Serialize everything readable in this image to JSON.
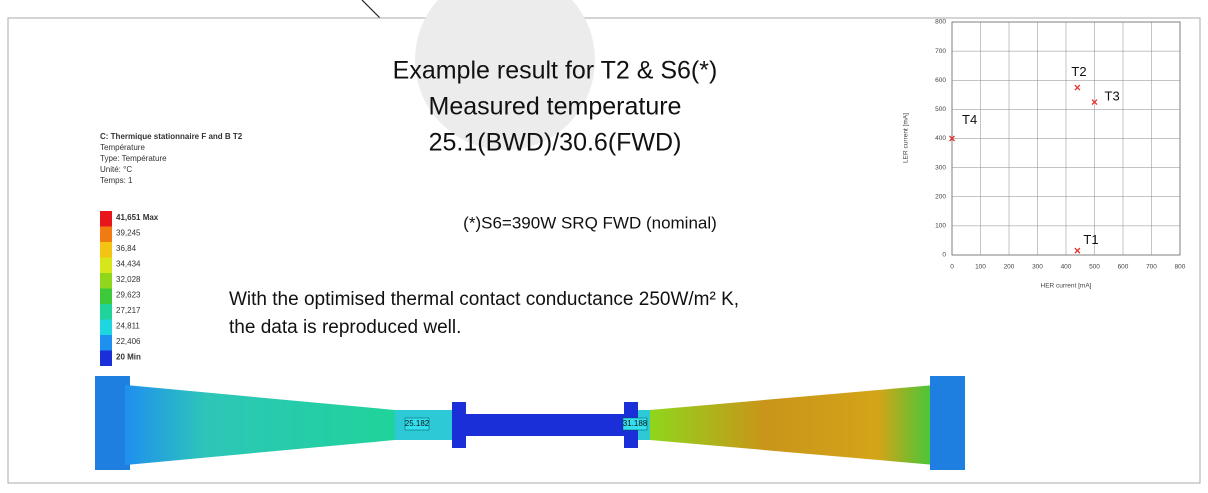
{
  "slide": {
    "title_lines": [
      "Example result for T2 & S6(*)",
      "Measured temperature",
      "25.1(BWD)/30.6(FWD)"
    ],
    "note": "(*)S6=390W SRQ FWD (nominal)",
    "conclusion_lines": [
      "With the optimised thermal contact conductance 250W/m² K,",
      "the data is reproduced well."
    ],
    "model": {
      "header": [
        "C: Thermique stationnaire F and B  T2",
        "Température",
        "Type: Température",
        "Unité: °C",
        "Temps: 1"
      ],
      "legend": [
        {
          "label": "41,651 Max",
          "color": "#e8151a"
        },
        {
          "label": "39,245",
          "color": "#f07b12"
        },
        {
          "label": "36,84",
          "color": "#f2c413"
        },
        {
          "label": "34,434",
          "color": "#d6e61a"
        },
        {
          "label": "32,028",
          "color": "#8fd61c"
        },
        {
          "label": "29,623",
          "color": "#3ec93b"
        },
        {
          "label": "27,217",
          "color": "#1fd39a"
        },
        {
          "label": "24,811",
          "color": "#1ed6e0"
        },
        {
          "label": "22,406",
          "color": "#1f8ff0"
        },
        {
          "label": "20 Min",
          "color": "#1a2fd8"
        }
      ],
      "probes": [
        "25.182",
        "31.188"
      ]
    }
  },
  "chart_data": {
    "type": "scatter",
    "x_label": "HER current [mA]",
    "y_label": "LER current [mA]",
    "x": [
      440,
      440,
      500,
      0
    ],
    "values": [
      15,
      575,
      525,
      400
    ],
    "point_labels": [
      "T1",
      "T2",
      "T3",
      "T4"
    ],
    "color": "#e53030",
    "xlim": [
      0,
      800
    ],
    "xticks": [
      0,
      100,
      200,
      300,
      400,
      500,
      600,
      700,
      800
    ],
    "ylim": [
      0,
      800
    ],
    "yticks": [
      0,
      100,
      200,
      300,
      400,
      500,
      600,
      700,
      800
    ],
    "grid": true
  }
}
